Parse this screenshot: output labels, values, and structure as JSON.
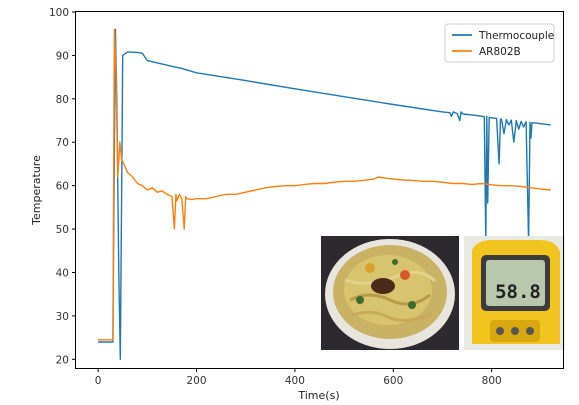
{
  "chart_data": {
    "type": "line",
    "xlabel": "Time(s)",
    "ylabel": "Temperature",
    "xlim": [
      -45,
      945
    ],
    "ylim": [
      18,
      100
    ],
    "x_ticks": [
      0,
      200,
      400,
      600,
      800
    ],
    "y_ticks": [
      20,
      30,
      40,
      50,
      60,
      70,
      80,
      90,
      100
    ],
    "grid": false,
    "legend_position": "top-right",
    "series": [
      {
        "name": "Thermocouple",
        "color": "#1f77b4",
        "x": [
          0,
          30,
          32,
          35,
          38,
          42,
          45,
          48,
          50,
          60,
          80,
          90,
          100,
          150,
          170,
          200,
          300,
          400,
          500,
          600,
          700,
          715,
          718,
          722,
          730,
          735,
          738,
          742,
          760,
          785,
          788,
          790,
          792,
          795,
          810,
          815,
          818,
          820,
          825,
          830,
          835,
          840,
          845,
          850,
          855,
          860,
          865,
          870,
          875,
          878,
          880,
          882,
          890,
          920
        ],
        "y": [
          24,
          24,
          55,
          96,
          80,
          40,
          20,
          60,
          90,
          90.8,
          90.7,
          90.5,
          88.8,
          87.5,
          87,
          86,
          84.2,
          82.3,
          80.5,
          78.7,
          77,
          76.8,
          76,
          77,
          76.6,
          75,
          77,
          76.5,
          76.3,
          75.9,
          47,
          76,
          56,
          75.7,
          75.5,
          65,
          75.3,
          75.3,
          72,
          75.2,
          74,
          75.1,
          70,
          75,
          73,
          74.8,
          73.5,
          74.7,
          47,
          74.6,
          71,
          74.5,
          74.4,
          74
        ]
      },
      {
        "name": "AR802B",
        "color": "#ff7f0e",
        "x": [
          0,
          30,
          31,
          33,
          36,
          40,
          44,
          48,
          52,
          56,
          60,
          70,
          80,
          90,
          100,
          110,
          120,
          130,
          140,
          150,
          155,
          158,
          160,
          165,
          170,
          175,
          178,
          180,
          190,
          200,
          220,
          240,
          260,
          280,
          300,
          320,
          340,
          360,
          380,
          400,
          420,
          440,
          460,
          480,
          500,
          520,
          540,
          560,
          570,
          580,
          600,
          620,
          640,
          660,
          680,
          700,
          720,
          740,
          760,
          780,
          800,
          820,
          840,
          860,
          880,
          900,
          920
        ],
        "y": [
          24.5,
          24.5,
          50,
          96,
          88,
          62,
          70,
          66,
          65,
          64,
          63,
          62,
          60.5,
          60,
          59,
          59.5,
          58.5,
          58.8,
          58,
          57.5,
          50,
          58,
          56.5,
          58,
          57,
          50,
          57.5,
          57,
          56.8,
          57,
          57,
          57.5,
          58,
          58,
          58.5,
          59,
          59.5,
          59.8,
          60,
          60,
          60.3,
          60.5,
          60.5,
          60.8,
          61,
          61,
          61.2,
          61.5,
          62,
          61.8,
          61.5,
          61.3,
          61.2,
          61,
          61,
          60.8,
          60.5,
          60.5,
          60.3,
          60.5,
          60.2,
          60,
          60,
          59.8,
          59.5,
          59.2,
          59
        ]
      }
    ]
  },
  "inset": {
    "photo_left": "bowl of noodle soup",
    "photo_right": "yellow infrared thermometer",
    "thermometer_reading": "58.8"
  }
}
